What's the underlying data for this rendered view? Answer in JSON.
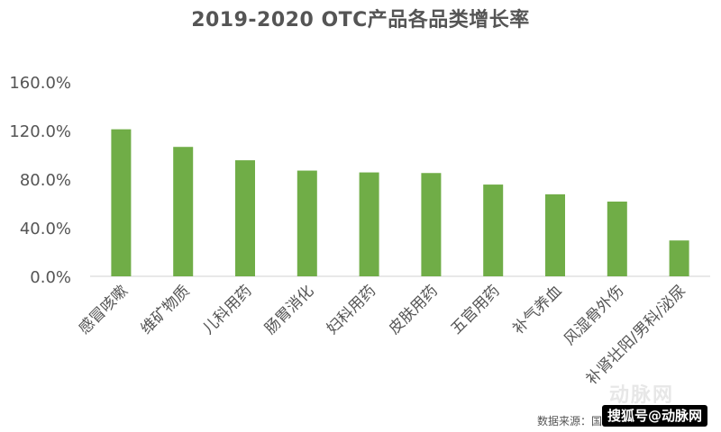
{
  "chart_data": {
    "type": "bar",
    "title": "2019-2020 OTC产品各品类增长率",
    "categories": [
      "感冒咳嗽",
      "维矿物质",
      "儿科用药",
      "肠胃消化",
      "妇科用药",
      "皮肤用药",
      "五官用药",
      "补气养血",
      "风湿骨外伤",
      "补肾壮阳/男科/泌尿"
    ],
    "values": [
      121.0,
      106.5,
      95.5,
      87.0,
      85.5,
      85.0,
      75.5,
      67.5,
      61.5,
      29.5
    ],
    "ylim": [
      0,
      160
    ],
    "yticks": [
      "0.0%",
      "40.0%",
      "80.0%",
      "120.0%",
      "160.0%"
    ],
    "ytick_values": [
      0,
      40,
      80,
      120,
      160
    ],
    "xlabel": "",
    "ylabel": "",
    "grid": false,
    "bar_color": "#70ad47"
  },
  "source_note": "数据来源：国内某主流电商平台",
  "watermark": {
    "logo": "动脉网",
    "text": "搜狐号@动脉网"
  }
}
